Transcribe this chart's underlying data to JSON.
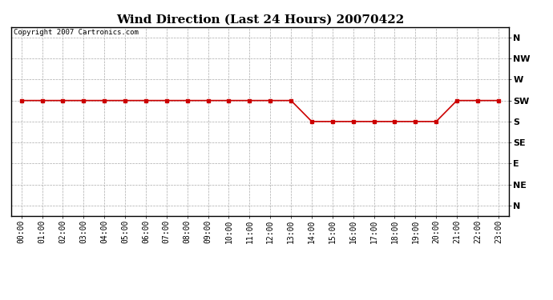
{
  "title": "Wind Direction (Last 24 Hours) 20070422",
  "copyright_text": "Copyright 2007 Cartronics.com",
  "x_labels": [
    "00:00",
    "01:00",
    "02:00",
    "03:00",
    "04:00",
    "05:00",
    "06:00",
    "07:00",
    "08:00",
    "09:00",
    "10:00",
    "11:00",
    "12:00",
    "13:00",
    "14:00",
    "15:00",
    "16:00",
    "17:00",
    "18:00",
    "19:00",
    "20:00",
    "21:00",
    "22:00",
    "23:00"
  ],
  "y_tick_labels": [
    "N",
    "NE",
    "E",
    "SE",
    "S",
    "SW",
    "W",
    "NW",
    "N"
  ],
  "wind_data": [
    5,
    5,
    5,
    5,
    5,
    5,
    5,
    5,
    5,
    5,
    5,
    5,
    5,
    5,
    4,
    4,
    4,
    4,
    4,
    4,
    4,
    5,
    5,
    5
  ],
  "line_color": "#cc0000",
  "marker": "s",
  "marker_size": 2.5,
  "line_width": 1.2,
  "bg_color": "#ffffff",
  "grid_color": "#aaaaaa",
  "grid_style": "--",
  "title_fontsize": 11,
  "copyright_fontsize": 6.5,
  "tick_fontsize": 7,
  "ylabel_fontsize": 8
}
